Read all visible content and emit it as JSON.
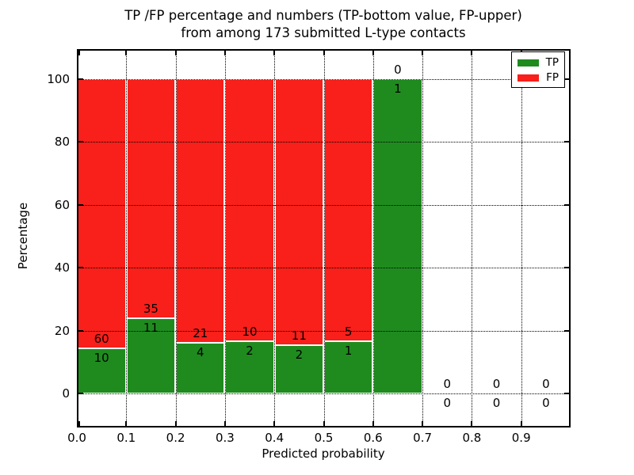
{
  "chart_data": {
    "type": "bar",
    "stacked": true,
    "title_line1": "TP /FP percentage and numbers (TP-bottom value, FP-upper)",
    "title_line2": "from among 173 submitted L-type contacts",
    "xlabel": "Predicted probability",
    "ylabel": "Percentage",
    "x_tick_labels": [
      "0.0",
      "0.1",
      "0.2",
      "0.3",
      "0.4",
      "0.5",
      "0.6",
      "0.7",
      "0.8",
      "0.9"
    ],
    "y_tick_labels": [
      "0",
      "20",
      "40",
      "60",
      "80",
      "100"
    ],
    "y_tick_values": [
      0,
      20,
      40,
      60,
      80,
      100
    ],
    "xlim": [
      0.0,
      1.0
    ],
    "ylim_display": [
      -11,
      110
    ],
    "grid_style": "dotted",
    "total_contacts": 173,
    "colors": {
      "tp": "#1f8b1f",
      "fp": "#f91f1a"
    },
    "legend": {
      "position": "upper-right",
      "entries": [
        {
          "label": "TP",
          "color": "#1f8b1f"
        },
        {
          "label": "FP",
          "color": "#f91f1a"
        }
      ]
    },
    "bins": [
      {
        "range": [
          0.0,
          0.1
        ],
        "tp": 10,
        "fp": 60
      },
      {
        "range": [
          0.1,
          0.2
        ],
        "tp": 11,
        "fp": 35
      },
      {
        "range": [
          0.2,
          0.3
        ],
        "tp": 4,
        "fp": 21
      },
      {
        "range": [
          0.3,
          0.4
        ],
        "tp": 2,
        "fp": 10
      },
      {
        "range": [
          0.4,
          0.5
        ],
        "tp": 2,
        "fp": 11
      },
      {
        "range": [
          0.5,
          0.6
        ],
        "tp": 1,
        "fp": 5
      },
      {
        "range": [
          0.6,
          0.7
        ],
        "tp": 1,
        "fp": 0
      },
      {
        "range": [
          0.7,
          0.8
        ],
        "tp": 0,
        "fp": 0
      },
      {
        "range": [
          0.8,
          0.9
        ],
        "tp": 0,
        "fp": 0
      },
      {
        "range": [
          0.9,
          1.0
        ],
        "tp": 0,
        "fp": 0
      }
    ]
  }
}
